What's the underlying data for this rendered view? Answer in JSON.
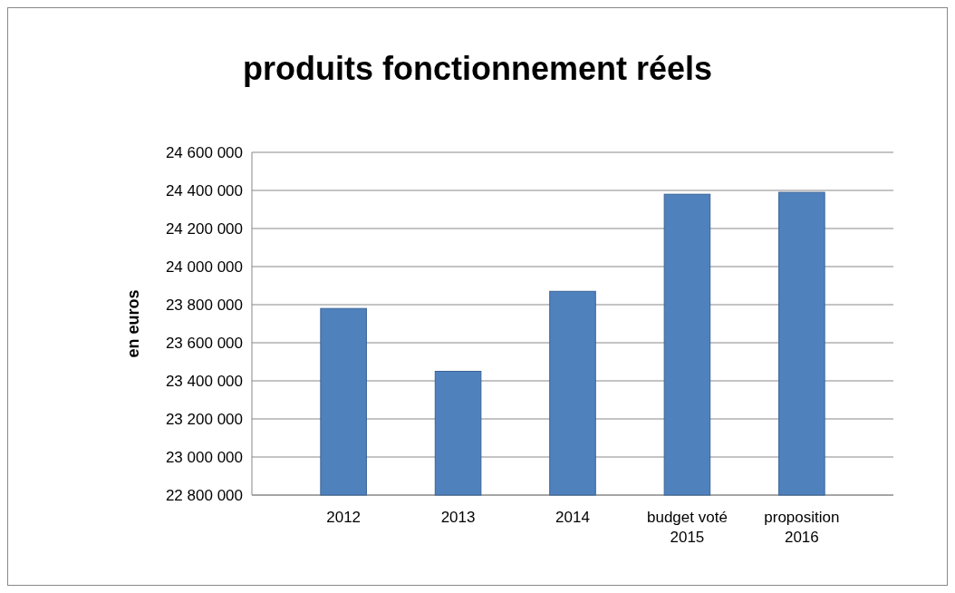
{
  "chart_data": {
    "type": "bar",
    "title": "produits fonctionnement réels",
    "ylabel": "en euros",
    "categories": [
      "2012",
      "2013",
      "2014",
      "budget voté 2015",
      "proposition 2016"
    ],
    "values": [
      23780000,
      23450000,
      23870000,
      24380000,
      24390000
    ],
    "color": "#4f81bd",
    "ylim": [
      22800000,
      24600000
    ],
    "yticks": [
      {
        "value": 22800000,
        "label": "22 800 000"
      },
      {
        "value": 23000000,
        "label": "23 000 000"
      },
      {
        "value": 23200000,
        "label": "23 200 000"
      },
      {
        "value": 23400000,
        "label": "23 400 000"
      },
      {
        "value": 23600000,
        "label": "23 600 000"
      },
      {
        "value": 23800000,
        "label": "23 800 000"
      },
      {
        "value": 24000000,
        "label": "24 000 000"
      },
      {
        "value": 24200000,
        "label": "24 200 000"
      },
      {
        "value": 24400000,
        "label": "24 400 000"
      },
      {
        "value": 24600000,
        "label": "24 600 000"
      }
    ],
    "grid": "y"
  }
}
